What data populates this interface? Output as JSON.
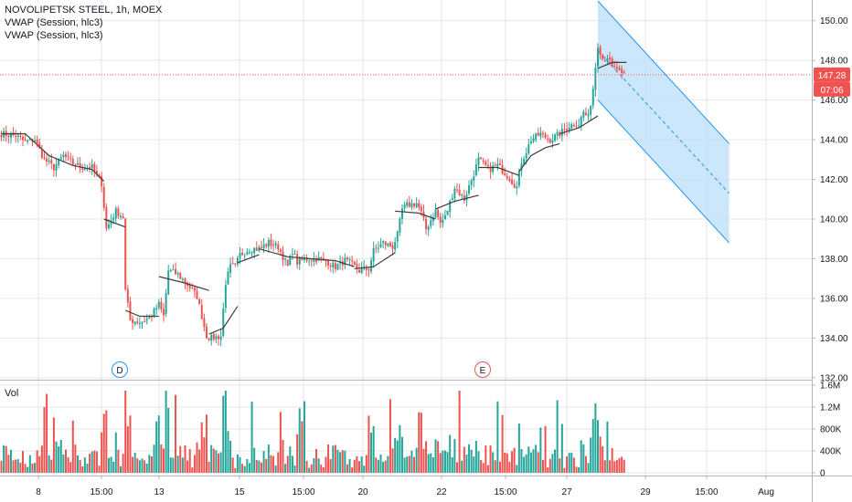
{
  "legend": {
    "symbol": "NOVOLIPETSK STEEL, 1h, MOEX",
    "indicator_1": "VWAP (Session, hlc3)",
    "indicator_2": "VWAP (Session, hlc3)"
  },
  "volume_pane": {
    "label": "Vol"
  },
  "price_badge": {
    "value": "147.28",
    "countdown": "07:06"
  },
  "event_markers": [
    "D",
    "E"
  ],
  "colors": {
    "up": "#26a69a",
    "down": "#ef5350",
    "vwap": "#3d3d3d",
    "channel_line": "#2196f3",
    "channel_fill": "#bbdefb",
    "price_line": "#ef5350",
    "grid": "#e6e6e6",
    "axis": "#b2b5be",
    "marker_d": "#2196f3",
    "marker_e": "#ef5350"
  },
  "chart_data": {
    "type": "candlestick",
    "title": "NOVOLIPETSK STEEL, 1h, MOEX",
    "price_axis": {
      "range": [
        131.9,
        151.0
      ],
      "ticks": [
        "132.00",
        "134.00",
        "136.00",
        "138.00",
        "140.00",
        "142.00",
        "144.00",
        "146.00",
        "148.00",
        "150.00"
      ]
    },
    "volume_axis": {
      "range": [
        0,
        1600000
      ],
      "ticks": [
        "0",
        "400K",
        "800K",
        "1.2M",
        "1.6M"
      ]
    },
    "time_axis": {
      "ticks": [
        "8",
        "15:00",
        "13",
        "15",
        "15:00",
        "20",
        "22",
        "15:00",
        "27",
        "29",
        "15:00",
        "Aug"
      ]
    },
    "last_price": 147.28,
    "anchors": [
      [
        0,
        144.3
      ],
      [
        6,
        144.2
      ],
      [
        10,
        143.9
      ],
      [
        14,
        144.0
      ],
      [
        18,
        143.0
      ],
      [
        22,
        142.6
      ],
      [
        26,
        143.2
      ],
      [
        30,
        142.8
      ],
      [
        34,
        142.6
      ],
      [
        38,
        142.6
      ],
      [
        42,
        141.8
      ],
      [
        44,
        139.5
      ],
      [
        48,
        140.4
      ],
      [
        51,
        140.1
      ],
      [
        52,
        136.4
      ],
      [
        54,
        134.9
      ],
      [
        58,
        134.8
      ],
      [
        62,
        135.0
      ],
      [
        66,
        135.7
      ],
      [
        68,
        135.1
      ],
      [
        70,
        137.4
      ],
      [
        74,
        137.2
      ],
      [
        78,
        136.7
      ],
      [
        82,
        136.1
      ],
      [
        86,
        134.1
      ],
      [
        88,
        134.0
      ],
      [
        92,
        134.1
      ],
      [
        94,
        136.8
      ],
      [
        96,
        137.6
      ],
      [
        98,
        137.6
      ],
      [
        100,
        138.2
      ],
      [
        104,
        138.5
      ],
      [
        108,
        138.5
      ],
      [
        112,
        138.8
      ],
      [
        116,
        138.6
      ],
      [
        120,
        137.6
      ],
      [
        122,
        138.4
      ],
      [
        124,
        137.8
      ],
      [
        128,
        138.0
      ],
      [
        132,
        138.0
      ],
      [
        136,
        137.9
      ],
      [
        140,
        137.6
      ],
      [
        144,
        137.9
      ],
      [
        146,
        137.8
      ],
      [
        150,
        137.4
      ],
      [
        154,
        137.5
      ],
      [
        156,
        138.4
      ],
      [
        160,
        138.8
      ],
      [
        164,
        138.6
      ],
      [
        166,
        139.2
      ],
      [
        168,
        140.5
      ],
      [
        170,
        140.7
      ],
      [
        174,
        140.8
      ],
      [
        176,
        140.3
      ],
      [
        178,
        139.5
      ],
      [
        182,
        140.4
      ],
      [
        184,
        139.8
      ],
      [
        186,
        140.1
      ],
      [
        190,
        141.6
      ],
      [
        194,
        141.0
      ],
      [
        198,
        142.3
      ],
      [
        200,
        143.0
      ],
      [
        204,
        142.5
      ],
      [
        208,
        142.7
      ],
      [
        212,
        142.2
      ],
      [
        216,
        141.6
      ],
      [
        218,
        142.9
      ],
      [
        220,
        143.4
      ],
      [
        222,
        144.0
      ],
      [
        226,
        144.3
      ],
      [
        230,
        144.0
      ],
      [
        234,
        144.3
      ],
      [
        238,
        144.7
      ],
      [
        240,
        144.8
      ],
      [
        242,
        144.8
      ],
      [
        244,
        145.4
      ],
      [
        246,
        145.1
      ],
      [
        248,
        146.6
      ],
      [
        250,
        148.8
      ],
      [
        252,
        148.1
      ],
      [
        254,
        148.2
      ],
      [
        256,
        147.6
      ],
      [
        258,
        147.6
      ],
      [
        260,
        147.2
      ],
      [
        261,
        147.28
      ]
    ],
    "vwap_segments": [
      {
        "from": 0,
        "to": 43,
        "values": [
          [
            0,
            144.3
          ],
          [
            10,
            144.3
          ],
          [
            20,
            143.2
          ],
          [
            30,
            142.7
          ],
          [
            38,
            142.5
          ],
          [
            43,
            141.9
          ]
        ]
      },
      {
        "from": 43,
        "to": 52,
        "values": [
          [
            43,
            140.0
          ],
          [
            52,
            139.6
          ]
        ]
      },
      {
        "from": 52,
        "to": 66,
        "values": [
          [
            52,
            135.4
          ],
          [
            58,
            135.1
          ],
          [
            66,
            135.1
          ]
        ]
      },
      {
        "from": 66,
        "to": 87,
        "values": [
          [
            66,
            137.1
          ],
          [
            76,
            136.8
          ],
          [
            87,
            136.4
          ]
        ]
      },
      {
        "from": 87,
        "to": 99,
        "values": [
          [
            87,
            134.2
          ],
          [
            93,
            134.5
          ],
          [
            99,
            135.6
          ]
        ]
      },
      {
        "from": 99,
        "to": 108,
        "values": [
          [
            99,
            137.8
          ],
          [
            108,
            138.2
          ]
        ]
      },
      {
        "from": 108,
        "to": 130,
        "values": [
          [
            108,
            138.5
          ],
          [
            120,
            138.1
          ],
          [
            130,
            138.0
          ]
        ]
      },
      {
        "from": 130,
        "to": 148,
        "values": [
          [
            130,
            138.0
          ],
          [
            140,
            137.9
          ],
          [
            148,
            137.6
          ]
        ]
      },
      {
        "from": 148,
        "to": 165,
        "values": [
          [
            148,
            137.5
          ],
          [
            156,
            137.6
          ],
          [
            165,
            138.3
          ]
        ]
      },
      {
        "from": 165,
        "to": 182,
        "values": [
          [
            165,
            140.4
          ],
          [
            175,
            140.3
          ],
          [
            182,
            140.0
          ]
        ]
      },
      {
        "from": 182,
        "to": 200,
        "values": [
          [
            182,
            140.5
          ],
          [
            190,
            140.9
          ],
          [
            200,
            141.2
          ]
        ]
      },
      {
        "from": 200,
        "to": 217,
        "values": [
          [
            200,
            142.6
          ],
          [
            208,
            142.6
          ],
          [
            217,
            142.2
          ]
        ]
      },
      {
        "from": 217,
        "to": 234,
        "values": [
          [
            217,
            142.4
          ],
          [
            222,
            143.2
          ],
          [
            228,
            143.6
          ],
          [
            234,
            143.8
          ]
        ]
      },
      {
        "from": 234,
        "to": 250,
        "values": [
          [
            234,
            144.3
          ],
          [
            242,
            144.6
          ],
          [
            250,
            145.2
          ]
        ]
      },
      {
        "from": 250,
        "to": 262,
        "values": [
          [
            250,
            147.6
          ],
          [
            256,
            147.9
          ],
          [
            262,
            147.9
          ]
        ]
      }
    ],
    "regression_channel": {
      "start_bar": 250,
      "end_bar": 305,
      "upper": [
        151.0,
        143.8
      ],
      "middle": [
        148.5,
        141.3
      ],
      "lower": [
        146.0,
        138.8
      ]
    }
  }
}
